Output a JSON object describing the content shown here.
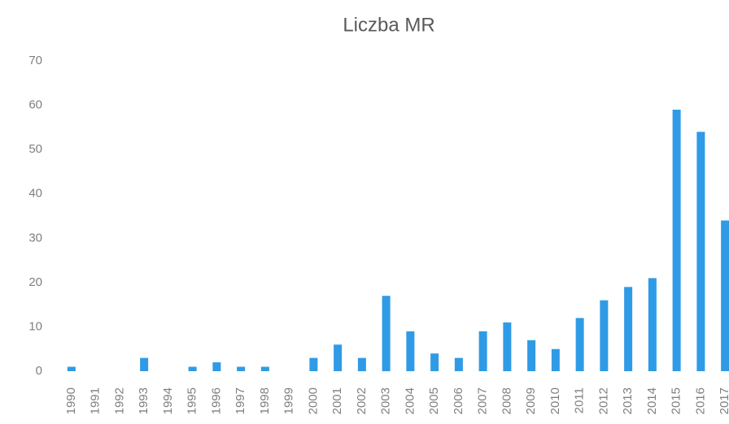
{
  "chart_data": {
    "type": "bar",
    "title": "Liczba MR",
    "categories": [
      "1990",
      "1991",
      "1992",
      "1993",
      "1994",
      "1995",
      "1996",
      "1997",
      "1998",
      "1999",
      "2000",
      "2001",
      "2002",
      "2003",
      "2004",
      "2005",
      "2006",
      "2007",
      "2008",
      "2009",
      "2010",
      "2011",
      "2012",
      "2013",
      "2014",
      "2015",
      "2016",
      "2017"
    ],
    "values": [
      1,
      0,
      0,
      3,
      0,
      1,
      2,
      1,
      1,
      0,
      3,
      6,
      3,
      17,
      9,
      4,
      3,
      9,
      11,
      7,
      5,
      12,
      16,
      19,
      21,
      59,
      54,
      34
    ],
    "color": "#2f9be6",
    "ylim": [
      0,
      70
    ],
    "yticks": [
      0,
      10,
      20,
      30,
      40,
      50,
      60,
      70
    ],
    "grid": false
  }
}
